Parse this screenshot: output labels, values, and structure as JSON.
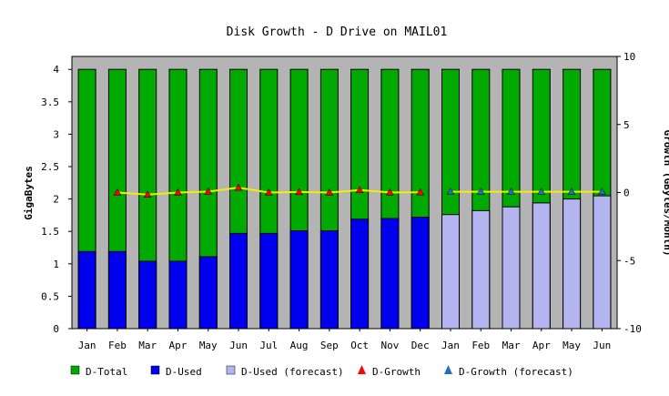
{
  "chart_data": {
    "type": "bar",
    "title": "Disk Growth - D Drive on MAIL01",
    "ylabel": "GigaBytes",
    "y2label": "Growth (GBytes/Month)",
    "xlabel": "",
    "ylim": [
      0,
      4.2
    ],
    "y2lim": [
      -10,
      10
    ],
    "yticks": [
      "0",
      "0.5",
      "1",
      "1.5",
      "2",
      "2.5",
      "3",
      "3.5",
      "4"
    ],
    "y2ticks": [
      "-10",
      "-5",
      "0",
      "5",
      "10"
    ],
    "categories": [
      "Jan",
      "Feb",
      "Mar",
      "Apr",
      "May",
      "Jun",
      "Jul",
      "Aug",
      "Sep",
      "Oct",
      "Nov",
      "Dec",
      "Jan",
      "Feb",
      "Mar",
      "Apr",
      "May",
      "Jun"
    ],
    "grid": false,
    "legend_position": "bottom",
    "series": [
      {
        "name": "D-Total",
        "kind": "bar",
        "axis": "left",
        "color": "#00aa00",
        "values": [
          4,
          4,
          4,
          4,
          4,
          4,
          4,
          4,
          4,
          4,
          4,
          4,
          4,
          4,
          4,
          4,
          4,
          4
        ]
      },
      {
        "name": "D-Used",
        "kind": "bar",
        "axis": "left",
        "color": "#0000ee",
        "values": [
          1.19,
          1.19,
          1.04,
          1.04,
          1.11,
          1.47,
          1.47,
          1.51,
          1.51,
          1.69,
          1.7,
          1.72,
          null,
          null,
          null,
          null,
          null,
          null
        ]
      },
      {
        "name": "D-Used (forecast)",
        "kind": "bar",
        "axis": "left",
        "color": "#b4b4f0",
        "values": [
          null,
          null,
          null,
          null,
          null,
          null,
          null,
          null,
          null,
          null,
          null,
          null,
          1.76,
          1.82,
          1.88,
          1.94,
          2.0,
          2.05
        ]
      },
      {
        "name": "D-Growth",
        "kind": "line",
        "axis": "right",
        "color": "#ff0000",
        "values": [
          null,
          0,
          -0.15,
          0,
          0.07,
          0.36,
          0,
          0.04,
          0,
          0.18,
          0.01,
          0.02,
          null,
          null,
          null,
          null,
          null,
          null
        ]
      },
      {
        "name": "D-Growth (forecast)",
        "kind": "line",
        "axis": "right",
        "color": "#2070c0",
        "values": [
          null,
          null,
          null,
          null,
          null,
          null,
          null,
          null,
          null,
          null,
          null,
          null,
          0.06,
          0.06,
          0.06,
          0.06,
          0.06,
          0.06
        ]
      }
    ],
    "line_color": "#f0f000",
    "plot_background": "#b4b4b4"
  }
}
